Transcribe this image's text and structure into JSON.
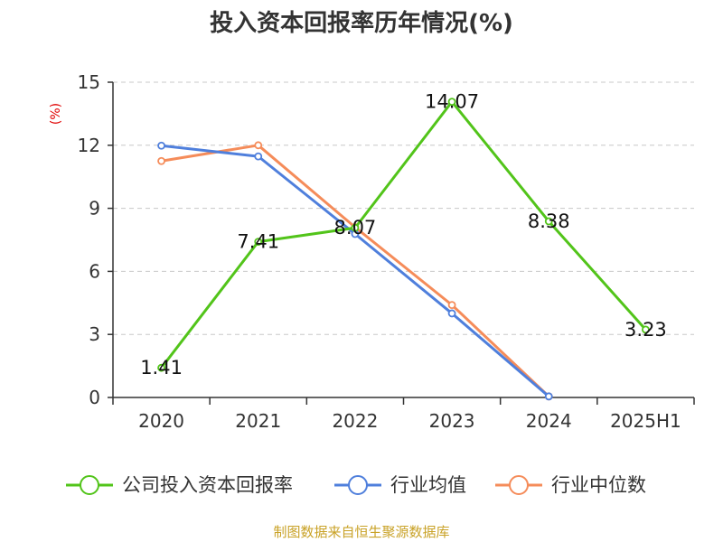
{
  "chart_data": {
    "type": "line",
    "title": "投入资本回报率历年情况(%)",
    "ylabel": "(%)",
    "xlabel": "",
    "categories": [
      "2020",
      "2021",
      "2022",
      "2023",
      "2024",
      "2025H1"
    ],
    "ylim": [
      0,
      15
    ],
    "yticks": [
      0,
      3,
      6,
      9,
      12,
      15
    ],
    "grid": true,
    "legend_position": "bottom",
    "series": [
      {
        "name": "公司投入资本回报率",
        "color": "#52c41a",
        "values": [
          1.41,
          7.41,
          8.07,
          14.07,
          8.38,
          3.23
        ],
        "show_labels": true,
        "labels": [
          "1.41",
          "7.41",
          "8.07",
          "14.07",
          "8.38",
          "3.23"
        ]
      },
      {
        "name": "行业均值",
        "color": "#4f7fdc",
        "values": [
          11.98,
          11.47,
          7.78,
          4.0,
          0.05,
          null
        ],
        "show_labels": false
      },
      {
        "name": "行业中位数",
        "color": "#f58c5a",
        "values": [
          11.25,
          12.0,
          8.1,
          4.4,
          0.05,
          null
        ],
        "show_labels": false
      }
    ],
    "unit_color": "#e00000",
    "source": "制图数据来自恒生聚源数据库",
    "source_color": "#c9a227"
  }
}
